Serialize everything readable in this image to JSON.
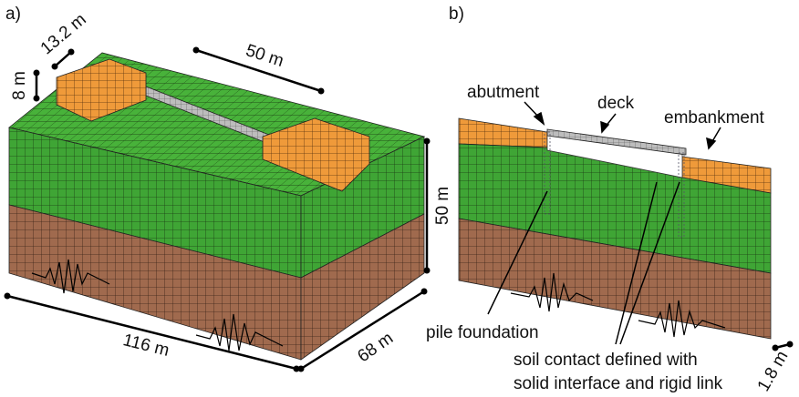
{
  "panel_a": {
    "label": "a)",
    "dims": {
      "abutment_width": "13.2 m",
      "abutment_height": "8 m",
      "span": "50 m",
      "depth": "50 m",
      "length": "116 m",
      "width": "68 m"
    }
  },
  "panel_b": {
    "label": "b)",
    "notes": {
      "abutment": "abutment",
      "deck": "deck",
      "embankment": "embankment",
      "pile": "pile foundation",
      "contact": [
        "soil contact defined with",
        "solid interface and rigid link"
      ],
      "thickness": "1.8 m"
    }
  }
}
